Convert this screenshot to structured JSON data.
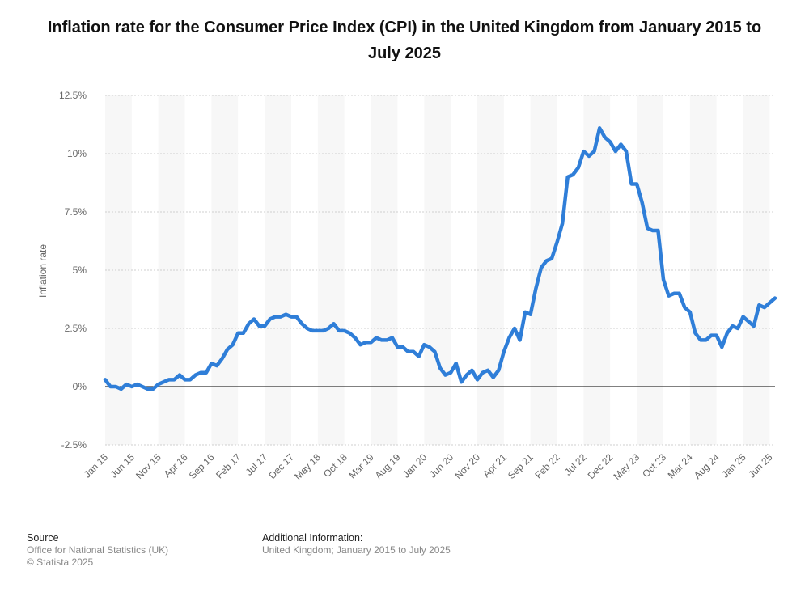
{
  "title": "Inflation rate for the Consumer Price Index (CPI) in the United Kingdom from January 2015 to July 2025",
  "footer": {
    "source_heading": "Source",
    "source_line1": "Office for National Statistics (UK)",
    "source_line2": "© Statista 2025",
    "info_heading": "Additional Information:",
    "info_line1": "United Kingdom; January 2015 to July 2025"
  },
  "chart_data": {
    "type": "line",
    "title": "Inflation rate for the Consumer Price Index (CPI) in the United Kingdom from January 2015 to July 2025",
    "xlabel": "",
    "ylabel": "Inflation rate",
    "ylim": [
      -2.5,
      12.5
    ],
    "yticks": [
      -2.5,
      0,
      2.5,
      5,
      7.5,
      10,
      12.5
    ],
    "ytick_labels": [
      "-2.5%",
      "0%",
      "2.5%",
      "5%",
      "7.5%",
      "10%",
      "12.5%"
    ],
    "xtick_labels": [
      "Jan 15",
      "Jun 15",
      "Nov 15",
      "Apr 16",
      "Sep 16",
      "Feb 17",
      "Jul 17",
      "Dec 17",
      "May 18",
      "Oct 18",
      "Mar 19",
      "Aug 19",
      "Jan 20",
      "Jun 20",
      "Nov 20",
      "Apr 21",
      "Sep 21",
      "Feb 22",
      "Jul 22",
      "Dec 22",
      "May 23",
      "Oct 23",
      "Mar 24",
      "Aug 24",
      "Jan 25",
      "Jun 25"
    ],
    "grid": true,
    "line_color": "#2f7ed8",
    "x_start": "Jan 2015",
    "x_end": "Jul 2025",
    "series": [
      {
        "values": [
          0.3,
          0.0,
          0.0,
          -0.1,
          0.1,
          0.0,
          0.1,
          0.0,
          -0.1,
          -0.1,
          0.1,
          0.2,
          0.3,
          0.3,
          0.5,
          0.3,
          0.3,
          0.5,
          0.6,
          0.6,
          1.0,
          0.9,
          1.2,
          1.6,
          1.8,
          2.3,
          2.3,
          2.7,
          2.9,
          2.6,
          2.6,
          2.9,
          3.0,
          3.0,
          3.1,
          3.0,
          3.0,
          2.7,
          2.5,
          2.4,
          2.4,
          2.4,
          2.5,
          2.7,
          2.4,
          2.4,
          2.3,
          2.1,
          1.8,
          1.9,
          1.9,
          2.1,
          2.0,
          2.0,
          2.1,
          1.7,
          1.7,
          1.5,
          1.5,
          1.3,
          1.8,
          1.7,
          1.5,
          0.8,
          0.5,
          0.6,
          1.0,
          0.2,
          0.5,
          0.7,
          0.3,
          0.6,
          0.7,
          0.4,
          0.7,
          1.5,
          2.1,
          2.5,
          2.0,
          3.2,
          3.1,
          4.2,
          5.1,
          5.4,
          5.5,
          6.2,
          7.0,
          9.0,
          9.1,
          9.4,
          10.1,
          9.9,
          10.1,
          11.1,
          10.7,
          10.5,
          10.1,
          10.4,
          10.1,
          8.7,
          8.7,
          7.9,
          6.8,
          6.7,
          6.7,
          4.6,
          3.9,
          4.0,
          4.0,
          3.4,
          3.2,
          2.3,
          2.0,
          2.0,
          2.2,
          2.2,
          1.7,
          2.3,
          2.6,
          2.5,
          3.0,
          2.8,
          2.6,
          3.5,
          3.4,
          3.6,
          3.8
        ]
      }
    ]
  }
}
